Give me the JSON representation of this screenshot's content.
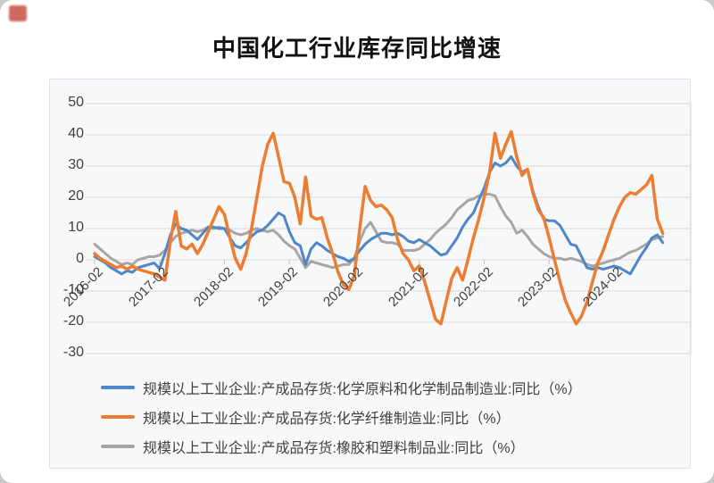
{
  "page": {
    "title": "中国化工行业库存同比增速"
  },
  "chart_data": {
    "type": "line",
    "title": "中国化工行业库存同比增速",
    "grid": true,
    "legend_position": "bottom-left",
    "ylim": [
      -30,
      50
    ],
    "y_ticks": [
      50,
      40,
      30,
      20,
      10,
      0,
      -10,
      -20,
      -30
    ],
    "x_axis_tick_labels": [
      "2016-02",
      "2017-02",
      "2018-02",
      "2019-02",
      "2020-02",
      "2021-02",
      "2022-02",
      "2023-02",
      "2024-02"
    ],
    "x": [
      "2016-02",
      "2016-03",
      "2016-04",
      "2016-05",
      "2016-06",
      "2016-07",
      "2016-08",
      "2016-09",
      "2016-10",
      "2016-11",
      "2016-12",
      "2017-01",
      "2017-02",
      "2017-03",
      "2017-04",
      "2017-05",
      "2017-06",
      "2017-07",
      "2017-08",
      "2017-09",
      "2017-10",
      "2017-11",
      "2017-12",
      "2018-01",
      "2018-02",
      "2018-03",
      "2018-04",
      "2018-05",
      "2018-06",
      "2018-07",
      "2018-08",
      "2018-09",
      "2018-10",
      "2018-11",
      "2018-12",
      "2019-01",
      "2019-02",
      "2019-03",
      "2019-04",
      "2019-05",
      "2019-06",
      "2019-07",
      "2019-08",
      "2019-09",
      "2019-10",
      "2019-11",
      "2019-12",
      "2020-01",
      "2020-02",
      "2020-03",
      "2020-04",
      "2020-05",
      "2020-06",
      "2020-07",
      "2020-08",
      "2020-09",
      "2020-10",
      "2020-11",
      "2020-12",
      "2021-01",
      "2021-02",
      "2021-03",
      "2021-04",
      "2021-05",
      "2021-06",
      "2021-07",
      "2021-08",
      "2021-09",
      "2021-10",
      "2021-11",
      "2021-12",
      "2022-01",
      "2022-02",
      "2022-03",
      "2022-04",
      "2022-05",
      "2022-06",
      "2022-07",
      "2022-08",
      "2022-09",
      "2022-10",
      "2022-11",
      "2022-12",
      "2023-01",
      "2023-02",
      "2023-03",
      "2023-04",
      "2023-05",
      "2023-06",
      "2023-07",
      "2023-08",
      "2023-09",
      "2023-10",
      "2023-11",
      "2023-12",
      "2024-01",
      "2024-02",
      "2024-03",
      "2024-04",
      "2024-05",
      "2024-06",
      "2024-07",
      "2024-08",
      "2024-09",
      "2024-10",
      "2024-11"
    ],
    "series": [
      {
        "name": "规模以上工业企业:产成品存货:化学原料和化学制品制造业:同比（%）",
        "color": "#4E86C8",
        "values": [
          1,
          0,
          -1,
          -2.5,
          -3.5,
          -4.5,
          -3.5,
          -4,
          -2.5,
          -2,
          -1.5,
          -1,
          -2.8,
          2,
          8,
          11.5,
          10,
          9.5,
          8,
          6.5,
          8.5,
          10.5,
          10.5,
          10,
          10,
          7,
          4.5,
          3.8,
          5.5,
          7.5,
          9,
          9.5,
          11,
          13,
          15,
          14,
          9,
          5.5,
          4.5,
          -1.5,
          3.5,
          5.5,
          4.5,
          3,
          2,
          1,
          0.5,
          -0.5,
          0.5,
          3,
          5,
          6.5,
          7.5,
          8.5,
          8.5,
          8,
          8.5,
          7.5,
          6,
          5.5,
          6.5,
          5.5,
          4.5,
          3,
          1.5,
          2,
          4.5,
          7,
          10.5,
          13,
          15,
          19,
          23,
          28,
          31,
          30,
          31,
          33,
          30,
          28,
          29,
          22,
          17,
          13,
          12.5,
          12.5,
          11,
          8,
          5,
          4.5,
          1,
          -2.5,
          -3,
          -2.5,
          -3,
          -2.5,
          -2,
          -2.5,
          -3.5,
          -4.5,
          -1.5,
          1.5,
          4,
          7,
          8,
          5.5
        ]
      },
      {
        "name": "规模以上工业企业:产成品存货:化学纤维制造业:同比（%）",
        "color": "#ED7D31",
        "values": [
          2,
          0.5,
          -0.5,
          -1.5,
          -2.5,
          -2,
          -3,
          -2,
          -3,
          -3.5,
          -4,
          -4.5,
          -5.5,
          -6.5,
          6,
          15.5,
          4.5,
          3.5,
          5,
          2,
          5,
          9,
          13,
          17,
          14.5,
          7,
          0.5,
          -3,
          2,
          10,
          20,
          30,
          37,
          40.5,
          33,
          25,
          24.5,
          20,
          11.5,
          26.5,
          14,
          13,
          13.5,
          7,
          2,
          -4,
          -8,
          -9.5,
          -5,
          10,
          23.5,
          19,
          17,
          17.5,
          16,
          13.5,
          6.5,
          2,
          0,
          -3.5,
          -2,
          -7,
          -13,
          -19,
          -20.5,
          -13,
          -6,
          -2.5,
          -6.5,
          0,
          7,
          13,
          20,
          28,
          40.5,
          32.5,
          37,
          41,
          33,
          27,
          29,
          21.5,
          16,
          13.5,
          7,
          0,
          -7,
          -13,
          -17,
          -20.5,
          -18,
          -13.5,
          -7,
          -1,
          3,
          8,
          13,
          17,
          20,
          21.5,
          21,
          22.5,
          24,
          27,
          13,
          8.5
        ]
      },
      {
        "name": "规模以上工业企业:产成品存货:橡胶和塑料制品业:同比（%）",
        "color": "#A6A6A6",
        "values": [
          5,
          3.5,
          2,
          0.5,
          -0.5,
          -1.5,
          -1,
          -1.5,
          0,
          0.5,
          1,
          1,
          1.5,
          3,
          5.5,
          7.5,
          8.5,
          9,
          9.5,
          9,
          9.5,
          10.5,
          10,
          10.5,
          10,
          9.5,
          8.5,
          8,
          8.5,
          9.5,
          10,
          9.5,
          9,
          9.5,
          8,
          6,
          4.5,
          3.5,
          0.5,
          -2.5,
          -0.5,
          -1,
          -1.5,
          -2,
          -2.5,
          -2,
          -1.5,
          -1.5,
          0.5,
          6,
          10,
          12,
          9,
          6,
          5.5,
          5.5,
          5,
          3,
          3,
          3,
          3.5,
          5,
          6.5,
          8.5,
          10,
          11.5,
          13.5,
          16,
          17.5,
          19,
          19.5,
          20.5,
          21,
          21,
          20.5,
          17,
          14,
          12,
          8.5,
          9.5,
          7.5,
          5,
          3.5,
          2,
          1,
          0.5,
          0.5,
          0,
          0.5,
          0,
          -0.5,
          -1.5,
          -2,
          -1.5,
          -1,
          -0.5,
          0,
          0.5,
          1.5,
          2.5,
          3,
          4,
          5,
          6.5,
          7,
          7.5
        ]
      }
    ]
  }
}
